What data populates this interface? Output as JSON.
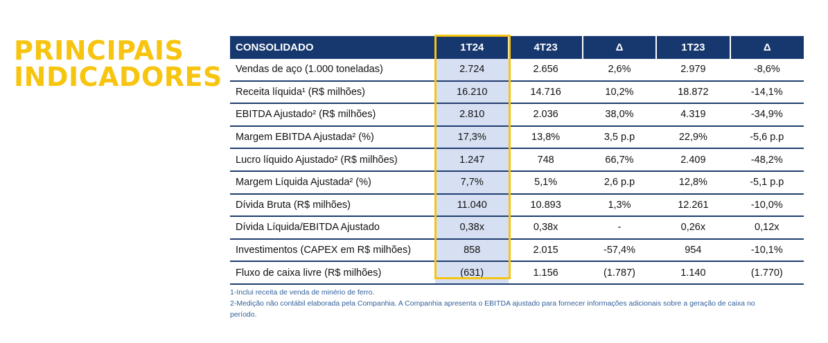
{
  "title": {
    "line1": "PRINCIPAIS",
    "line2": "INDICADORES"
  },
  "colors": {
    "title": "#f7c40f",
    "header_bg": "#16386e",
    "highlight": "#f7c40f",
    "highlight_fill": "#d7e0f2",
    "footnote": "#2f5f9a"
  },
  "table": {
    "headers": [
      "CONSOLIDADO",
      "1T24",
      "4T23",
      "Δ",
      "1T23",
      "Δ"
    ],
    "rows": [
      {
        "label": "Vendas de aço (1.000 toneladas)",
        "values": [
          "2.724",
          "2.656",
          "2,6%",
          "2.979",
          "-8,6%"
        ]
      },
      {
        "label": "Receita líquida¹ (R$ milhões)",
        "values": [
          "16.210",
          "14.716",
          "10,2%",
          "18.872",
          "-14,1%"
        ]
      },
      {
        "label": "EBITDA Ajustado² (R$ milhões)",
        "values": [
          "2.810",
          "2.036",
          "38,0%",
          "4.319",
          "-34,9%"
        ]
      },
      {
        "label": "Margem EBITDA Ajustada² (%)",
        "values": [
          "17,3%",
          "13,8%",
          "3,5 p.p",
          "22,9%",
          "-5,6 p.p"
        ]
      },
      {
        "label": "Lucro líquido Ajustado² (R$ milhões)",
        "values": [
          "1.247",
          "748",
          "66,7%",
          "2.409",
          "-48,2%"
        ]
      },
      {
        "label": "Margem Líquida Ajustada² (%)",
        "values": [
          "7,7%",
          "5,1%",
          "2,6 p.p",
          "12,8%",
          "-5,1 p.p"
        ]
      },
      {
        "label": "Dívida Bruta (R$ milhões)",
        "values": [
          "11.040",
          "10.893",
          "1,3%",
          "12.261",
          "-10,0%"
        ]
      },
      {
        "label": "Dívida Líquida/EBITDA Ajustado",
        "values": [
          "0,38x",
          "0,38x",
          "-",
          "0,26x",
          "0,12x"
        ]
      },
      {
        "label": "Investimentos (CAPEX em R$ milhões)",
        "values": [
          "858",
          "2.015",
          "-57,4%",
          "954",
          "-10,1%"
        ]
      },
      {
        "label": "Fluxo de caixa livre (R$ milhões)",
        "values": [
          "(631)",
          "1.156",
          "(1.787)",
          "1.140",
          "(1.770)"
        ]
      }
    ]
  },
  "footnotes": {
    "note1": "1-Inclui receita de venda de minério de ferro.",
    "note2a": "2-Medição não contábil elaborada pela Companhia. A Companhia apresenta o EBITDA ajustado para fornecer informações adicionais sobre a geração de caixa no",
    "note2b": "período."
  }
}
